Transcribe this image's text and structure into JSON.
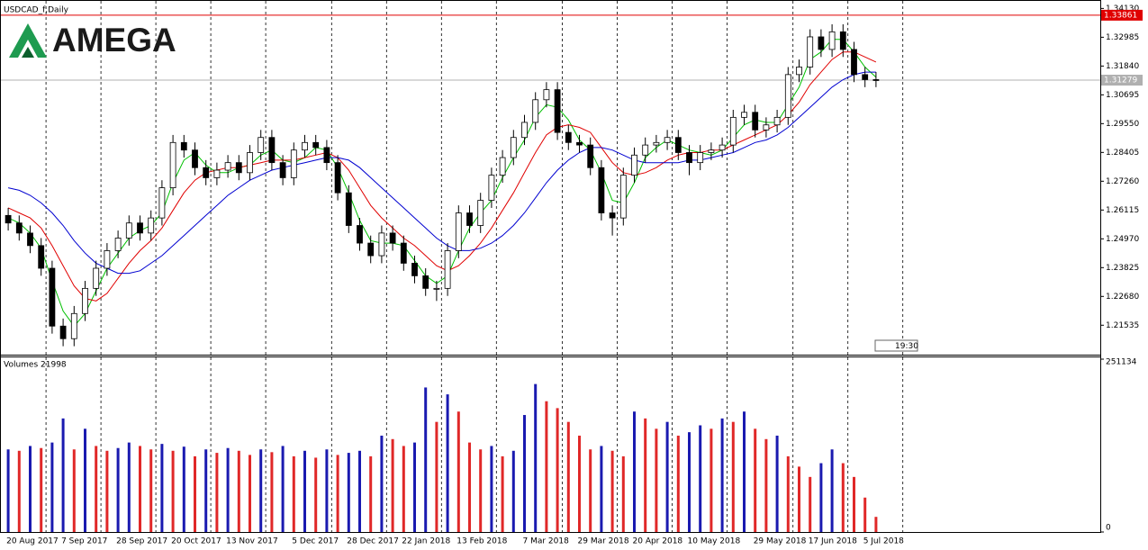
{
  "chart_data": {
    "type": "candlestick",
    "title": "USDCAD_f,Daily",
    "brand": "AMEGA",
    "timer": "19:30",
    "categories": [
      "20 Aug 2017",
      null,
      null,
      null,
      null,
      "7 Sep 2017",
      null,
      null,
      null,
      null,
      "28 Sep 2017",
      null,
      null,
      null,
      null,
      "20 Oct 2017",
      null,
      null,
      null,
      null,
      "13 Nov 2017",
      null,
      null,
      null,
      null,
      null,
      "5 Dec 2017",
      null,
      null,
      null,
      null,
      "28 Dec 2017",
      null,
      null,
      null,
      null,
      "22 Jan 2018",
      null,
      null,
      null,
      null,
      "13 Feb 2018",
      null,
      null,
      null,
      null,
      null,
      "7 Mar 2018",
      null,
      null,
      null,
      null,
      "29 Mar 2018",
      null,
      null,
      null,
      null,
      "20 Apr 2018",
      null,
      null,
      null,
      null,
      "10 May 2018",
      null,
      null,
      null,
      null,
      null,
      "29 May 2018",
      null,
      null,
      null,
      null,
      "17 Jun 2018",
      null,
      null,
      null,
      null,
      "5 Jul 2018",
      null
    ],
    "open": [
      1.259,
      1.256,
      1.252,
      1.247,
      1.238,
      1.215,
      1.21,
      1.22,
      1.23,
      1.238,
      1.245,
      1.25,
      1.256,
      1.252,
      1.258,
      1.27,
      1.288,
      1.285,
      1.278,
      1.274,
      1.277,
      1.28,
      1.276,
      1.284,
      1.29,
      1.28,
      1.274,
      1.285,
      1.288,
      1.286,
      1.28,
      1.268,
      1.255,
      1.248,
      1.243,
      1.252,
      1.248,
      1.24,
      1.235,
      1.23,
      1.23,
      1.245,
      1.26,
      1.255,
      1.265,
      1.275,
      1.282,
      1.29,
      1.296,
      1.305,
      1.309,
      1.292,
      1.288,
      1.287,
      1.278,
      1.26,
      1.258,
      1.275,
      1.283,
      1.287,
      1.288,
      1.29,
      1.284,
      1.28,
      1.284,
      1.285,
      1.287,
      1.298,
      1.3,
      1.293,
      1.295,
      1.298,
      1.315,
      1.318,
      1.33,
      1.325,
      1.332,
      1.325,
      1.315,
      1.313
    ],
    "high": [
      1.262,
      1.259,
      1.255,
      1.25,
      1.241,
      1.218,
      1.223,
      1.233,
      1.241,
      1.248,
      1.253,
      1.259,
      1.259,
      1.261,
      1.273,
      1.291,
      1.291,
      1.288,
      1.281,
      1.28,
      1.283,
      1.283,
      1.287,
      1.293,
      1.293,
      1.283,
      1.288,
      1.291,
      1.291,
      1.289,
      1.283,
      1.271,
      1.258,
      1.251,
      1.255,
      1.255,
      1.251,
      1.243,
      1.238,
      1.233,
      1.248,
      1.263,
      1.263,
      1.268,
      1.278,
      1.285,
      1.293,
      1.299,
      1.308,
      1.312,
      1.312,
      1.295,
      1.291,
      1.29,
      1.281,
      1.263,
      1.278,
      1.286,
      1.29,
      1.291,
      1.293,
      1.293,
      1.287,
      1.287,
      1.288,
      1.29,
      1.301,
      1.303,
      1.303,
      1.298,
      1.301,
      1.318,
      1.321,
      1.333,
      1.333,
      1.335,
      1.335,
      1.328,
      1.318,
      1.316
    ],
    "low": [
      1.253,
      1.249,
      1.244,
      1.235,
      1.212,
      1.207,
      1.207,
      1.217,
      1.227,
      1.235,
      1.242,
      1.247,
      1.249,
      1.249,
      1.255,
      1.267,
      1.282,
      1.275,
      1.271,
      1.271,
      1.274,
      1.273,
      1.273,
      1.281,
      1.277,
      1.271,
      1.271,
      1.282,
      1.283,
      1.277,
      1.265,
      1.252,
      1.245,
      1.24,
      1.24,
      1.245,
      1.237,
      1.232,
      1.227,
      1.225,
      1.227,
      1.242,
      1.252,
      1.252,
      1.262,
      1.272,
      1.279,
      1.287,
      1.293,
      1.302,
      1.289,
      1.285,
      1.284,
      1.275,
      1.257,
      1.251,
      1.255,
      1.272,
      1.28,
      1.284,
      1.285,
      1.281,
      1.275,
      1.277,
      1.281,
      1.282,
      1.284,
      1.295,
      1.29,
      1.29,
      1.292,
      1.295,
      1.312,
      1.315,
      1.322,
      1.322,
      1.322,
      1.312,
      1.31,
      1.31
    ],
    "close": [
      1.256,
      1.252,
      1.247,
      1.238,
      1.215,
      1.21,
      1.22,
      1.23,
      1.238,
      1.245,
      1.25,
      1.256,
      1.252,
      1.258,
      1.27,
      1.288,
      1.285,
      1.278,
      1.274,
      1.277,
      1.28,
      1.276,
      1.284,
      1.29,
      1.28,
      1.274,
      1.285,
      1.288,
      1.286,
      1.28,
      1.268,
      1.255,
      1.248,
      1.243,
      1.252,
      1.248,
      1.24,
      1.235,
      1.23,
      1.23,
      1.245,
      1.26,
      1.255,
      1.265,
      1.275,
      1.282,
      1.29,
      1.296,
      1.305,
      1.309,
      1.292,
      1.288,
      1.287,
      1.278,
      1.26,
      1.258,
      1.275,
      1.283,
      1.287,
      1.288,
      1.29,
      1.284,
      1.28,
      1.284,
      1.285,
      1.287,
      1.298,
      1.3,
      1.293,
      1.295,
      1.298,
      1.315,
      1.318,
      1.33,
      1.325,
      1.332,
      1.325,
      1.315,
      1.313,
      1.3128
    ],
    "moving_averages": [
      {
        "color": "#00c000",
        "values": [
          1.258,
          1.256,
          1.252,
          1.246,
          1.233,
          1.221,
          1.215,
          1.22,
          1.229,
          1.238,
          1.244,
          1.25,
          1.253,
          1.255,
          1.26,
          1.272,
          1.281,
          1.284,
          1.279,
          1.276,
          1.276,
          1.278,
          1.279,
          1.283,
          1.285,
          1.281,
          1.28,
          1.282,
          1.286,
          1.285,
          1.278,
          1.268,
          1.257,
          1.249,
          1.248,
          1.248,
          1.247,
          1.241,
          1.235,
          1.232,
          1.235,
          1.245,
          1.254,
          1.26,
          1.265,
          1.274,
          1.282,
          1.289,
          1.298,
          1.303,
          1.302,
          1.297,
          1.289,
          1.285,
          1.276,
          1.265,
          1.264,
          1.272,
          1.282,
          1.286,
          1.289,
          1.287,
          1.285,
          1.284,
          1.283,
          1.285,
          1.29,
          1.295,
          1.297,
          1.296,
          1.296,
          1.303,
          1.31,
          1.321,
          1.324,
          1.329,
          1.329,
          1.324,
          1.318,
          1.314
        ]
      },
      {
        "color": "#e00000",
        "values": [
          1.262,
          1.26,
          1.258,
          1.254,
          1.247,
          1.239,
          1.231,
          1.226,
          1.225,
          1.228,
          1.234,
          1.24,
          1.245,
          1.249,
          1.254,
          1.261,
          1.268,
          1.273,
          1.276,
          1.277,
          1.278,
          1.278,
          1.279,
          1.28,
          1.281,
          1.281,
          1.281,
          1.282,
          1.283,
          1.284,
          1.282,
          1.277,
          1.27,
          1.263,
          1.258,
          1.254,
          1.25,
          1.247,
          1.243,
          1.239,
          1.237,
          1.239,
          1.243,
          1.248,
          1.254,
          1.261,
          1.268,
          1.276,
          1.284,
          1.291,
          1.294,
          1.295,
          1.294,
          1.292,
          1.286,
          1.28,
          1.276,
          1.275,
          1.276,
          1.278,
          1.281,
          1.283,
          1.284,
          1.284,
          1.285,
          1.285,
          1.287,
          1.289,
          1.291,
          1.293,
          1.295,
          1.299,
          1.304,
          1.311,
          1.316,
          1.321,
          1.324,
          1.324,
          1.322,
          1.32
        ]
      },
      {
        "color": "#0000d0",
        "values": [
          1.27,
          1.269,
          1.267,
          1.264,
          1.26,
          1.255,
          1.249,
          1.244,
          1.24,
          1.238,
          1.236,
          1.236,
          1.237,
          1.24,
          1.243,
          1.247,
          1.251,
          1.255,
          1.259,
          1.263,
          1.267,
          1.27,
          1.273,
          1.275,
          1.277,
          1.278,
          1.279,
          1.28,
          1.281,
          1.282,
          1.282,
          1.281,
          1.278,
          1.274,
          1.27,
          1.266,
          1.262,
          1.258,
          1.254,
          1.25,
          1.247,
          1.245,
          1.245,
          1.246,
          1.248,
          1.251,
          1.255,
          1.26,
          1.266,
          1.272,
          1.277,
          1.281,
          1.284,
          1.286,
          1.286,
          1.285,
          1.283,
          1.281,
          1.28,
          1.28,
          1.28,
          1.28,
          1.281,
          1.281,
          1.282,
          1.283,
          1.284,
          1.286,
          1.288,
          1.289,
          1.291,
          1.294,
          1.298,
          1.302,
          1.306,
          1.31,
          1.313,
          1.315,
          1.316,
          1.316
        ]
      }
    ],
    "ylim": [
      1.204,
      1.3443
    ],
    "yticks": [
      {
        "value": 1.3413,
        "label": "1.34130"
      },
      {
        "value": 1.32985,
        "label": "1.32985"
      },
      {
        "value": 1.3184,
        "label": "1.31840"
      },
      {
        "value": 1.30695,
        "label": "1.30695"
      },
      {
        "value": 1.2955,
        "label": "1.29550"
      },
      {
        "value": 1.28405,
        "label": "1.28405"
      },
      {
        "value": 1.2726,
        "label": "1.27260"
      },
      {
        "value": 1.26115,
        "label": "1.26115"
      },
      {
        "value": 1.2497,
        "label": "1.24970"
      },
      {
        "value": 1.23825,
        "label": "1.23825"
      },
      {
        "value": 1.2268,
        "label": "1.22680"
      },
      {
        "value": 1.21535,
        "label": "1.21535"
      }
    ],
    "price_lines": [
      {
        "value": 1.33861,
        "label": "1.33861",
        "color": "#e00000"
      },
      {
        "value": 1.31279,
        "label": "1.31279",
        "color": "#b0b0b0"
      }
    ],
    "volume": {
      "title": "Volumes 21998",
      "up_color": "#1a1ab0",
      "down_color": "#e02828",
      "values": [
        120000,
        118000,
        125000,
        122000,
        130000,
        165000,
        120000,
        150000,
        125000,
        118000,
        122000,
        130000,
        125000,
        120000,
        128000,
        118000,
        124000,
        110000,
        120000,
        115000,
        122000,
        118000,
        112000,
        120000,
        116000,
        125000,
        110000,
        118000,
        108000,
        120000,
        112000,
        115000,
        118000,
        110000,
        140000,
        135000,
        125000,
        130000,
        210000,
        160000,
        200000,
        175000,
        130000,
        120000,
        125000,
        110000,
        118000,
        170000,
        215000,
        190000,
        180000,
        160000,
        140000,
        120000,
        125000,
        118000,
        110000,
        175000,
        165000,
        150000,
        160000,
        140000,
        145000,
        155000,
        150000,
        165000,
        160000,
        175000,
        150000,
        135000,
        140000,
        110000,
        95000,
        80000,
        100000,
        120000,
        100000,
        80000,
        50000,
        21998
      ],
      "ylim": [
        0,
        251134
      ],
      "yticks": [
        251134,
        0
      ]
    }
  }
}
